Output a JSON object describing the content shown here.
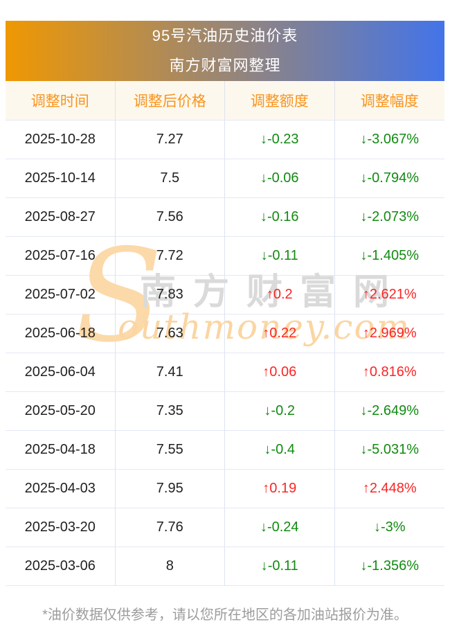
{
  "header": {
    "title": "95号汽油历史油价表",
    "subtitle": "南方财富网整理"
  },
  "chart_data": {
    "type": "table",
    "title": "95号汽油历史油价表",
    "columns": [
      "调整时间",
      "调整后价格",
      "调整额度",
      "调整幅度"
    ],
    "rows": [
      {
        "date": "2025-10-28",
        "price": "7.27",
        "change": "↓-0.23",
        "pct": "↓-3.067%",
        "dir": "down"
      },
      {
        "date": "2025-10-14",
        "price": "7.5",
        "change": "↓-0.06",
        "pct": "↓-0.794%",
        "dir": "down"
      },
      {
        "date": "2025-08-27",
        "price": "7.56",
        "change": "↓-0.16",
        "pct": "↓-2.073%",
        "dir": "down"
      },
      {
        "date": "2025-07-16",
        "price": "7.72",
        "change": "↓-0.11",
        "pct": "↓-1.405%",
        "dir": "down"
      },
      {
        "date": "2025-07-02",
        "price": "7.83",
        "change": "↑0.2",
        "pct": "↑2.621%",
        "dir": "up"
      },
      {
        "date": "2025-06-18",
        "price": "7.63",
        "change": "↑0.22",
        "pct": "↑2.969%",
        "dir": "up"
      },
      {
        "date": "2025-06-04",
        "price": "7.41",
        "change": "↑0.06",
        "pct": "↑0.816%",
        "dir": "up"
      },
      {
        "date": "2025-05-20",
        "price": "7.35",
        "change": "↓-0.2",
        "pct": "↓-2.649%",
        "dir": "down"
      },
      {
        "date": "2025-04-18",
        "price": "7.55",
        "change": "↓-0.4",
        "pct": "↓-5.031%",
        "dir": "down"
      },
      {
        "date": "2025-04-03",
        "price": "7.95",
        "change": "↑0.19",
        "pct": "↑2.448%",
        "dir": "up"
      },
      {
        "date": "2025-03-20",
        "price": "7.76",
        "change": "↓-0.24",
        "pct": "↓-3%",
        "dir": "down"
      },
      {
        "date": "2025-03-06",
        "price": "8",
        "change": "↓-0.11",
        "pct": "↓-1.356%",
        "dir": "down"
      }
    ]
  },
  "watermark": {
    "s": "S",
    "cn": "南方财富网",
    "en": "outhmoney.com"
  },
  "footer": {
    "note": "*油价数据仅供参考，请以您所在地区的各加油站报价为准。"
  },
  "colors": {
    "gradient_left": "#ef9802",
    "gradient_right": "#4374e9",
    "header_row_bg": "#fdf8ee",
    "header_text": "#f7941e",
    "up": "#fb2424",
    "down": "#118a11",
    "body_text": "#1f1f1f",
    "footer_text": "#9c9c9c"
  }
}
